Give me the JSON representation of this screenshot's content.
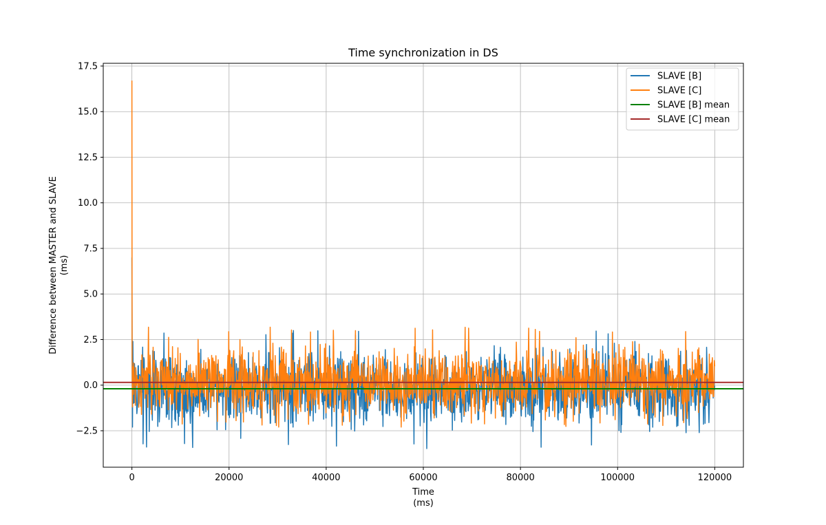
{
  "chart_data": {
    "type": "line",
    "title": "Time synchronization in DS",
    "xlabel": "Time\n(ms)",
    "ylabel": "Difference between MASTER and SLAVE\n(ms)",
    "xlim": [
      -5900,
      125900
    ],
    "ylim": [
      -4.5,
      17.65
    ],
    "xticks": [
      0,
      20000,
      40000,
      60000,
      80000,
      100000,
      120000
    ],
    "yticks": [
      -2.5,
      0.0,
      2.5,
      5.0,
      7.5,
      10.0,
      12.5,
      15.0,
      17.5
    ],
    "xtick_labels": [
      "0",
      "20000",
      "40000",
      "60000",
      "80000",
      "100000",
      "120000"
    ],
    "ytick_labels": [
      "−2.5",
      "0.0",
      "2.5",
      "5.0",
      "7.5",
      "10.0",
      "12.5",
      "15.0",
      "17.5"
    ],
    "grid": true,
    "legend_position": "top-right",
    "x_range": [
      0,
      120000
    ],
    "series": [
      {
        "name": "SLAVE [B]",
        "color": "#1f77b4",
        "kind": "noisy",
        "initial_points": [
          [
            0,
            7.0
          ],
          [
            60,
            0.9
          ],
          [
            120,
            -2.3
          ],
          [
            200,
            2.4
          ],
          [
            300,
            -1.0
          ]
        ],
        "mean": -0.2,
        "min": -3.5,
        "max": 3.0
      },
      {
        "name": "SLAVE [C]",
        "color": "#ff7f0e",
        "kind": "noisy",
        "initial_points": [
          [
            0,
            16.7
          ],
          [
            40,
            1.5
          ],
          [
            120,
            -1.2
          ],
          [
            200,
            1.0
          ],
          [
            300,
            -0.5
          ]
        ],
        "mean": 0.15,
        "min": -2.3,
        "max": 3.2
      },
      {
        "name": "SLAVE [B] mean",
        "color": "#008000",
        "kind": "hline",
        "value": -0.2
      },
      {
        "name": "SLAVE [C] mean",
        "color": "#a52a2a",
        "kind": "hline",
        "value": 0.15
      }
    ]
  }
}
